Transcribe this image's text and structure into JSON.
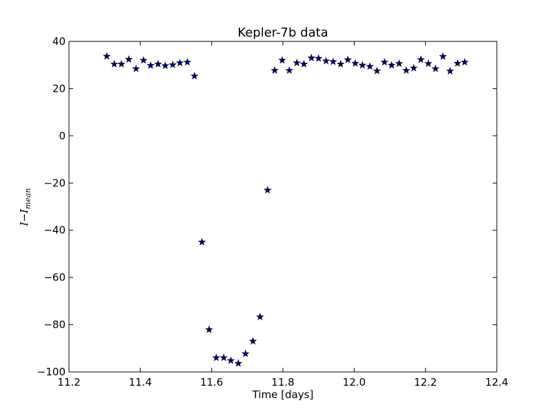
{
  "chart_data": {
    "type": "scatter",
    "title": "Kepler-7b data",
    "xlabel": "Time [days]",
    "ylabel": {
      "main": "I−I",
      "sub": "mean"
    },
    "xlim": [
      11.2,
      12.4
    ],
    "ylim": [
      -100,
      40
    ],
    "xticks": [
      11.2,
      11.4,
      11.6,
      11.8,
      12.0,
      12.2,
      12.4
    ],
    "xtick_labels": [
      "11.2",
      "11.4",
      "11.6",
      "11.8",
      "12.0",
      "12.2",
      "12.4"
    ],
    "yticks": [
      -100,
      -80,
      -60,
      -40,
      -20,
      0,
      20,
      40
    ],
    "ytick_labels": [
      "−100",
      "−80",
      "−60",
      "−40",
      "−20",
      "0",
      "20",
      "40"
    ],
    "grid": false,
    "marker": "star",
    "marker_color": "#00007f",
    "series": [
      {
        "x": [
          11.306,
          11.327,
          11.347,
          11.368,
          11.388,
          11.409,
          11.429,
          11.45,
          11.47,
          11.491,
          11.511,
          11.532,
          11.552,
          11.573,
          11.593,
          11.613,
          11.634,
          11.654,
          11.675,
          11.695,
          11.716,
          11.736,
          11.757,
          11.777,
          11.798,
          11.818,
          11.839,
          11.859,
          11.88,
          11.9,
          11.921,
          11.941,
          11.962,
          11.982,
          12.003,
          12.023,
          12.044,
          12.064,
          12.085,
          12.105,
          12.126,
          12.146,
          12.167,
          12.187,
          12.208,
          12.228,
          12.249,
          12.269,
          12.29,
          12.31
        ],
        "y": [
          33.7,
          30.4,
          30.4,
          32.4,
          28.4,
          32.0,
          29.8,
          30.4,
          29.7,
          30.1,
          30.9,
          31.2,
          25.3,
          -45.0,
          -82.1,
          -94.0,
          -94.0,
          -95.2,
          -96.4,
          -92.3,
          -87.0,
          -76.7,
          -23.0,
          27.7,
          32.0,
          27.7,
          30.9,
          30.4,
          33.0,
          32.8,
          31.7,
          31.4,
          30.4,
          32.2,
          30.7,
          29.9,
          29.4,
          27.5,
          31.2,
          29.9,
          30.6,
          27.7,
          28.7,
          32.3,
          30.6,
          28.4,
          33.6,
          27.4,
          30.7,
          31.2
        ]
      }
    ]
  }
}
